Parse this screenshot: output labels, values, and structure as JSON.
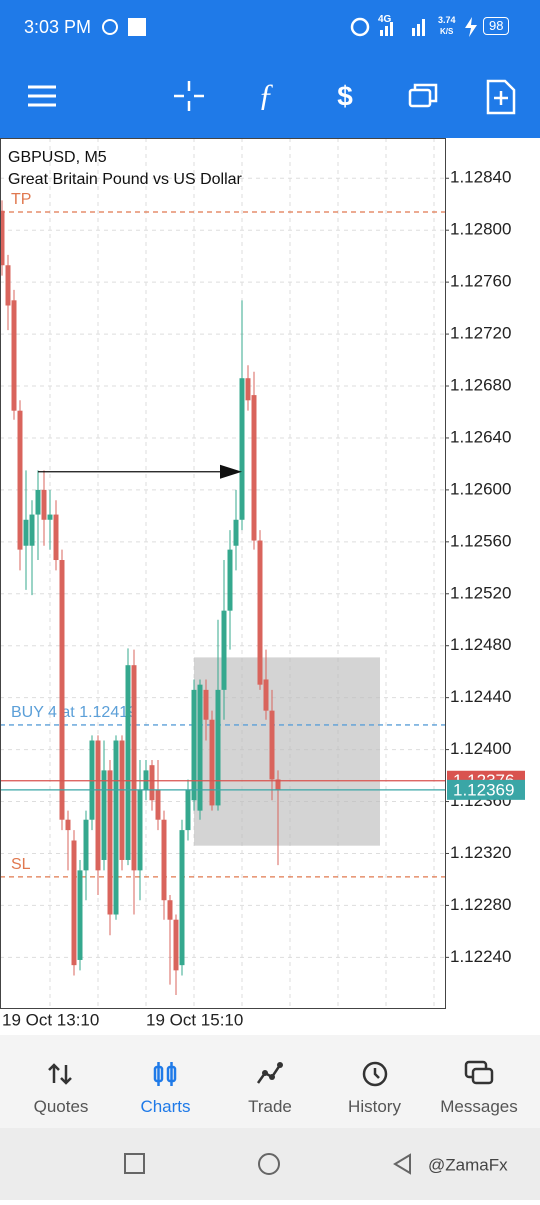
{
  "status_bar": {
    "time": "3:03 PM",
    "network": "4G",
    "speed": "3.74",
    "speed_unit": "K/S",
    "battery": "98"
  },
  "chart_data": {
    "type": "candlestick",
    "symbol": "GBPUSD, M5",
    "description": "Great Britain Pound vs US Dollar",
    "categories": [
      "19 Oct 13:10",
      null,
      null,
      null,
      null,
      null,
      null,
      null,
      null,
      null,
      null,
      null,
      null,
      null,
      null,
      null,
      null,
      null,
      null,
      null,
      null,
      null,
      null,
      null,
      "19 Oct 15:10",
      null,
      null,
      null,
      null,
      null,
      null,
      null,
      null,
      null,
      null,
      null,
      null,
      null,
      null,
      null,
      null,
      null,
      null,
      null,
      null,
      null,
      null
    ],
    "open": [
      1.12815,
      1.12773,
      1.12746,
      1.12661,
      1.12557,
      1.12557,
      1.12581,
      1.126,
      1.12577,
      1.12581,
      1.12546,
      1.12346,
      1.1233,
      1.12238,
      1.12307,
      1.12346,
      1.12407,
      1.12315,
      1.12384,
      1.12273,
      1.12407,
      1.12315,
      1.12465,
      1.12307,
      1.12369,
      1.12388,
      1.12369,
      1.12346,
      1.12284,
      1.12269,
      1.12234,
      1.12338,
      1.12361,
      1.12353,
      1.12446,
      1.12423,
      1.12357,
      1.12446,
      1.12507,
      1.12557,
      1.12577,
      1.12686,
      1.12673,
      1.12561,
      1.12454,
      1.1243,
      1.12377
    ],
    "high": [
      1.12823,
      1.12781,
      1.12754,
      1.12669,
      1.12615,
      1.12592,
      1.12615,
      1.12615,
      1.126,
      1.12592,
      1.12554,
      1.12353,
      1.12338,
      1.12315,
      1.12353,
      1.12411,
      1.12411,
      1.12407,
      1.12392,
      1.12411,
      1.12411,
      1.12478,
      1.12477,
      1.12392,
      1.12392,
      1.12392,
      1.12392,
      1.12353,
      1.12288,
      1.12273,
      1.12346,
      1.12377,
      1.12454,
      1.12454,
      1.12454,
      1.1243,
      1.125,
      1.12546,
      1.12569,
      1.126,
      1.12746,
      1.12696,
      1.12691,
      1.12569,
      1.12477,
      1.12446,
      1.12384
    ],
    "low": [
      1.12765,
      1.12723,
      1.12654,
      1.12538,
      1.12523,
      1.12519,
      1.12546,
      1.12557,
      1.12554,
      1.12538,
      1.12338,
      1.12307,
      1.12226,
      1.1223,
      1.12284,
      1.12338,
      1.12288,
      1.12307,
      1.12257,
      1.12269,
      1.12307,
      1.12311,
      1.12273,
      1.12284,
      1.12361,
      1.12353,
      1.12338,
      1.12269,
      1.12219,
      1.12211,
      1.12226,
      1.1233,
      1.12353,
      1.12346,
      1.12407,
      1.12353,
      1.12353,
      1.12423,
      1.12477,
      1.12538,
      1.12569,
      1.12661,
      1.12554,
      1.12446,
      1.12423,
      1.12361,
      1.12311
    ],
    "close": [
      1.12773,
      1.12742,
      1.12661,
      1.12554,
      1.12577,
      1.12581,
      1.126,
      1.12577,
      1.12581,
      1.12546,
      1.12346,
      1.12338,
      1.12234,
      1.12307,
      1.12346,
      1.12407,
      1.12307,
      1.12384,
      1.12273,
      1.12407,
      1.12315,
      1.12465,
      1.12307,
      1.12369,
      1.12384,
      1.12361,
      1.12346,
      1.12284,
      1.12269,
      1.1223,
      1.12338,
      1.12369,
      1.12446,
      1.1245,
      1.12423,
      1.12357,
      1.12446,
      1.12507,
      1.12554,
      1.12577,
      1.12686,
      1.12669,
      1.12561,
      1.1245,
      1.1243,
      1.12377,
      1.12369
    ],
    "up_color": "#35a88e",
    "down_color": "#d9645c",
    "ylim": [
      1.12201,
      1.12871
    ],
    "yticks": [
      {
        "value": 1.1224,
        "label": "1.12240"
      },
      {
        "value": 1.1228,
        "label": "1.12280"
      },
      {
        "value": 1.1232,
        "label": "1.12320"
      },
      {
        "value": 1.1236,
        "label": "1.12360"
      },
      {
        "value": 1.124,
        "label": "1.12400"
      },
      {
        "value": 1.1244,
        "label": "1.12440"
      },
      {
        "value": 1.1248,
        "label": "1.12480"
      },
      {
        "value": 1.1252,
        "label": "1.12520"
      },
      {
        "value": 1.1256,
        "label": "1.12560"
      },
      {
        "value": 1.126,
        "label": "1.12600"
      },
      {
        "value": 1.1264,
        "label": "1.12640"
      },
      {
        "value": 1.1268,
        "label": "1.12680"
      },
      {
        "value": 1.1272,
        "label": "1.12720"
      },
      {
        "value": 1.1276,
        "label": "1.12760"
      },
      {
        "value": 1.128,
        "label": "1.12800"
      },
      {
        "value": 1.1284,
        "label": "1.12840"
      }
    ],
    "grid": true,
    "levels": [
      {
        "label": "TP",
        "value": 1.12814,
        "color": "#e0784f"
      },
      {
        "label": "BUY 4 at 1.12419",
        "value": 1.12419,
        "color": "#5b9fd8"
      },
      {
        "label": "SL",
        "value": 1.12302,
        "color": "#e0784f"
      }
    ],
    "ask": {
      "value": 1.12376,
      "color": "#d9534f"
    },
    "bid": {
      "value": 1.12369,
      "color": "#3aa6a6"
    },
    "zone": {
      "from": 32,
      "to": 63,
      "low": 1.12326,
      "high": 1.12471
    },
    "arrow": {
      "from": 6,
      "to": 40,
      "value": 1.12614
    }
  },
  "nav": [
    "Quotes",
    "Charts",
    "Trade",
    "History",
    "Messages"
  ],
  "watermark": "@ZamaFx"
}
